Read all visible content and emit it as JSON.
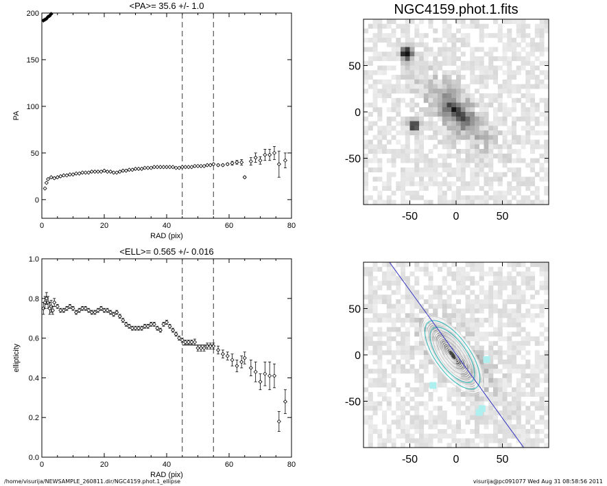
{
  "footer": {
    "path": "/home/visurija/NEWSAMPLE_260811.dir/NGC4159.phot.1_ellipse",
    "user_date": "visurija@pc091077  Wed Aug 31 08:58:56 2011"
  },
  "chart_data": [
    {
      "id": "pa_profile",
      "type": "scatter",
      "title": "<PA>=  35.6 +/-   1.0",
      "xlabel": "RAD (pix)",
      "ylabel": "PA",
      "xlim": [
        0,
        80
      ],
      "ylim": [
        -20,
        200
      ],
      "x_ticks": [
        0,
        20,
        40,
        60,
        80
      ],
      "y_ticks": [
        0,
        50,
        100,
        150,
        200
      ],
      "vlines": [
        45,
        55
      ],
      "series": [
        {
          "x": [
            1.0,
            1.5,
            2.0,
            3.0,
            4.0,
            5.0,
            6.0,
            7.0,
            8.0,
            9.0,
            10.0,
            11.0,
            12.0,
            13.0,
            14.0,
            15.0,
            16.0,
            17.0,
            18.0,
            19.0,
            20.0,
            21.0,
            22.0,
            23.0,
            24.0,
            25.0,
            26.0,
            27.0,
            28.0,
            29.0,
            30.0,
            31.0,
            32.0,
            33.0,
            34.0,
            35.0,
            36.0,
            37.0,
            38.0,
            39.0,
            40.0,
            41.0,
            42.0,
            43.0,
            44.0,
            45.0,
            46.0,
            47.0,
            48.0,
            49.0,
            50.0,
            51.0,
            52.0,
            53.0,
            54.0,
            55.0,
            56.5,
            58.0,
            59.5,
            61.0,
            62.5,
            64.0,
            65.0,
            67.0,
            68.5,
            70.0,
            71.5,
            73.0,
            74.5,
            76.0,
            78.0
          ],
          "y": [
            12,
            18,
            22,
            24,
            23,
            24,
            25,
            26,
            26,
            27,
            27,
            28,
            28,
            29,
            29,
            29,
            30,
            30,
            30,
            30,
            31,
            30,
            30,
            29,
            29,
            30,
            31,
            31,
            32,
            32,
            33,
            33,
            33,
            34,
            34,
            34,
            35,
            35,
            35,
            35,
            35,
            35,
            35,
            34,
            34,
            35,
            35,
            35,
            35,
            36,
            36,
            36,
            36,
            37,
            37,
            38,
            37,
            37,
            38,
            39,
            40,
            40,
            24,
            41,
            45,
            42,
            48,
            48,
            50,
            38,
            42
          ],
          "err": [
            0.5,
            0.5,
            0.5,
            0.5,
            0.5,
            0.5,
            0.5,
            0.5,
            0.5,
            0.5,
            0.5,
            0.5,
            0.5,
            0.5,
            0.5,
            0.5,
            0.5,
            0.5,
            0.5,
            0.5,
            0.5,
            0.5,
            0.5,
            0.5,
            0.5,
            0.5,
            0.5,
            0.5,
            0.5,
            0.5,
            0.5,
            0.5,
            0.5,
            0.5,
            0.5,
            0.5,
            0.5,
            0.5,
            0.5,
            0.5,
            0.5,
            0.5,
            0.5,
            0.5,
            0.5,
            0.5,
            0.5,
            0.5,
            0.5,
            0.5,
            0.5,
            0.5,
            0.5,
            0.5,
            0.5,
            0.5,
            1,
            1,
            1,
            2,
            2,
            3,
            1,
            4,
            5,
            4,
            6,
            6,
            7,
            14,
            8
          ]
        },
        {
          "x": [
            0.5,
            1.0,
            1.5,
            2.0,
            2.5,
            3.0
          ],
          "y": [
            192,
            193,
            194,
            196,
            197,
            199
          ]
        }
      ]
    },
    {
      "id": "ell_profile",
      "type": "scatter",
      "title": "<ELL>= 0.565 +/-  0.016",
      "xlabel": "RAD (pix)",
      "ylabel": "ellipticity",
      "xlim": [
        0,
        80
      ],
      "ylim": [
        0,
        1
      ],
      "x_ticks": [
        0,
        20,
        40,
        60,
        80
      ],
      "y_ticks": [
        0.0,
        0.2,
        0.4,
        0.6,
        0.8,
        1.0
      ],
      "vlines": [
        45,
        55
      ],
      "hline": {
        "y": 0.565,
        "x": [
          45,
          55
        ]
      },
      "series": [
        {
          "x": [
            0.5,
            1.0,
            1.5,
            2.0,
            2.5,
            3.0,
            3.5,
            4.0,
            5.0,
            6.0,
            7.0,
            8.0,
            9.0,
            10.0,
            11.0,
            12.0,
            13.0,
            14.0,
            15.0,
            16.0,
            17.0,
            18.0,
            19.0,
            20.0,
            21.0,
            22.0,
            23.0,
            24.0,
            25.0,
            26.0,
            27.0,
            28.0,
            29.0,
            30.0,
            31.0,
            32.0,
            33.0,
            34.0,
            35.0,
            36.0,
            37.0,
            38.0,
            39.0,
            40.0,
            41.0,
            42.0,
            43.0,
            44.0,
            45.0,
            46.0,
            47.0,
            48.0,
            49.0,
            50.0,
            51.0,
            52.0,
            53.0,
            54.0,
            55.0,
            56.5,
            58.0,
            59.5,
            61.0,
            62.5,
            64.0,
            65.0,
            67.0,
            68.5,
            70.0,
            71.5,
            73.0,
            74.5,
            76.0,
            78.0
          ],
          "y": [
            0.75,
            0.78,
            0.8,
            0.78,
            0.75,
            0.76,
            0.74,
            0.78,
            0.76,
            0.74,
            0.74,
            0.75,
            0.76,
            0.75,
            0.73,
            0.74,
            0.75,
            0.75,
            0.74,
            0.73,
            0.73,
            0.74,
            0.75,
            0.74,
            0.74,
            0.73,
            0.72,
            0.73,
            0.71,
            0.69,
            0.67,
            0.66,
            0.65,
            0.65,
            0.65,
            0.65,
            0.66,
            0.66,
            0.67,
            0.67,
            0.65,
            0.64,
            0.67,
            0.68,
            0.66,
            0.64,
            0.62,
            0.6,
            0.59,
            0.58,
            0.58,
            0.58,
            0.58,
            0.55,
            0.55,
            0.55,
            0.56,
            0.56,
            0.56,
            0.54,
            0.52,
            0.51,
            0.49,
            0.46,
            0.48,
            0.5,
            0.45,
            0.43,
            0.38,
            0.42,
            0.41,
            0.41,
            0.18,
            0.28
          ],
          "err": [
            0.03,
            0.03,
            0.03,
            0.03,
            0.03,
            0.03,
            0.02,
            0.02,
            0.01,
            0.01,
            0.01,
            0.01,
            0.01,
            0.01,
            0.01,
            0.01,
            0.01,
            0.01,
            0.01,
            0.01,
            0.01,
            0.01,
            0.01,
            0.01,
            0.01,
            0.01,
            0.01,
            0.01,
            0.01,
            0.01,
            0.01,
            0.01,
            0.01,
            0.01,
            0.01,
            0.01,
            0.01,
            0.01,
            0.01,
            0.01,
            0.01,
            0.01,
            0.01,
            0.01,
            0.01,
            0.01,
            0.01,
            0.01,
            0.01,
            0.01,
            0.01,
            0.01,
            0.015,
            0.015,
            0.015,
            0.015,
            0.015,
            0.015,
            0.015,
            0.02,
            0.02,
            0.02,
            0.03,
            0.03,
            0.03,
            0.03,
            0.04,
            0.05,
            0.04,
            0.06,
            0.07,
            0.06,
            0.05,
            0.06
          ]
        }
      ]
    },
    {
      "id": "image_panel",
      "type": "heatmap",
      "title": "NGC4159.phot.1.fits",
      "xlim": [
        -100,
        100
      ],
      "ylim": [
        -100,
        100
      ],
      "x_ticks": [
        -50,
        0,
        50
      ],
      "y_ticks": [
        -50,
        0,
        50
      ]
    },
    {
      "id": "contour_panel",
      "type": "heatmap",
      "title": "",
      "xlim": [
        -100,
        100
      ],
      "ylim": [
        -100,
        100
      ],
      "x_ticks": [
        -50,
        0,
        50
      ],
      "y_ticks": [
        -50,
        0,
        50
      ]
    }
  ]
}
